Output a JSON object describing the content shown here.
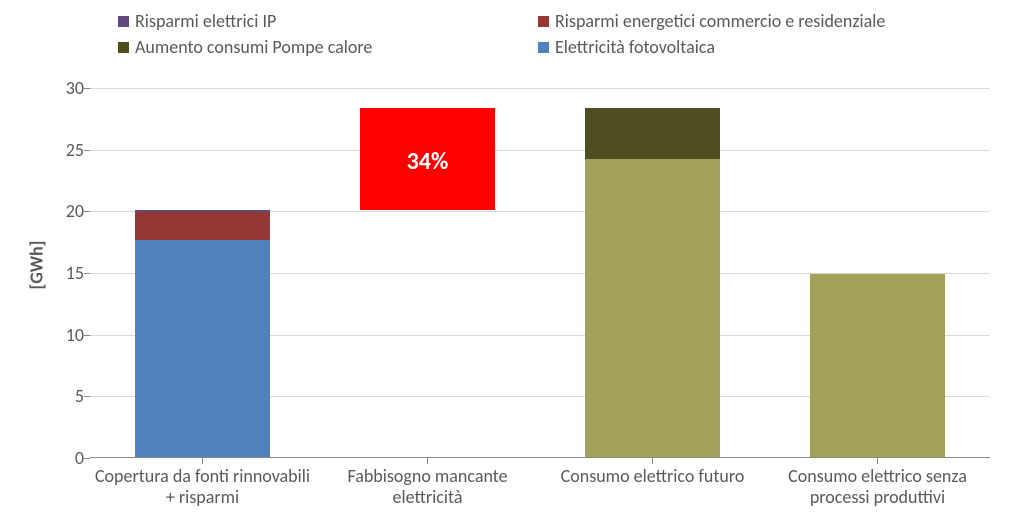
{
  "chart": {
    "type": "stacked-bar",
    "background_color": "#ffffff",
    "grid_color": "#d9d9d9",
    "axis_color": "#888888",
    "ylabel": "[GWh]",
    "label_fontsize": 18,
    "tick_fontsize": 18,
    "tick_color": "#595959",
    "ylim": [
      0,
      30
    ],
    "ytick_step": 5,
    "bar_width_ratio": 0.6,
    "categories": [
      "Copertura da fonti rinnovabili\n+ risparmi",
      "Fabbisogno mancante\nelettricità",
      "Consumo elettrico futuro",
      "Consumo elettrico senza\nprocessi produttivi"
    ],
    "legend": [
      {
        "key": "risparmi_ip",
        "label": "Risparmi elettrici IP",
        "color": "#604a7b"
      },
      {
        "key": "risparmi_comm_res",
        "label": "Risparmi energetici commercio e residenziale",
        "color": "#953735"
      },
      {
        "key": "pompe_calore",
        "label": "Aumento consumi Pompe calore",
        "color": "#4f4e21"
      },
      {
        "key": "fotovoltaica",
        "label": "Elettricità fotovoltaica",
        "color": "#4f81bd"
      }
    ],
    "extra_series": [
      {
        "key": "fabbisogno",
        "color": "#ff0000"
      },
      {
        "key": "consumo_base",
        "color": "#a2a05a"
      }
    ],
    "bars": [
      {
        "category_index": 0,
        "segments": [
          {
            "key": "fotovoltaica",
            "from": 0,
            "to": 17.6
          },
          {
            "key": "risparmi_comm_res",
            "from": 17.6,
            "to": 19.9
          },
          {
            "key": "risparmi_ip",
            "from": 19.9,
            "to": 20.0
          }
        ]
      },
      {
        "category_index": 1,
        "segments": [
          {
            "key": "fabbisogno",
            "from": 20.0,
            "to": 28.3
          }
        ],
        "label": {
          "text": "34%",
          "fontsize": 24,
          "color": "#ffffff",
          "value": 24.0
        }
      },
      {
        "category_index": 2,
        "segments": [
          {
            "key": "consumo_base",
            "from": 0,
            "to": 24.2
          },
          {
            "key": "pompe_calore",
            "from": 24.2,
            "to": 28.3
          }
        ]
      },
      {
        "category_index": 3,
        "segments": [
          {
            "key": "consumo_base",
            "from": 0,
            "to": 14.8
          }
        ]
      }
    ]
  }
}
